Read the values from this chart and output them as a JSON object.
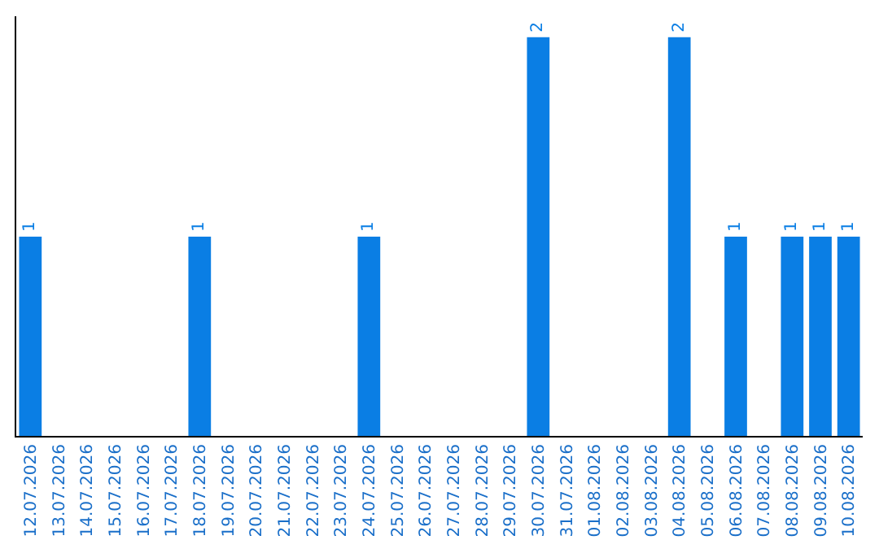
{
  "chart_data": {
    "type": "bar",
    "categories": [
      "12.07.2026",
      "13.07.2026",
      "14.07.2026",
      "15.07.2026",
      "16.07.2026",
      "17.07.2026",
      "18.07.2026",
      "19.07.2026",
      "20.07.2026",
      "21.07.2026",
      "22.07.2026",
      "23.07.2026",
      "24.07.2026",
      "25.07.2026",
      "26.07.2026",
      "27.07.2026",
      "28.07.2026",
      "29.07.2026",
      "30.07.2026",
      "31.07.2026",
      "01.08.2026",
      "02.08.2026",
      "03.08.2026",
      "04.08.2026",
      "05.08.2026",
      "06.08.2026",
      "07.08.2026",
      "08.08.2026",
      "09.08.2026",
      "10.08.2026"
    ],
    "values": [
      1,
      0,
      0,
      0,
      0,
      0,
      1,
      0,
      0,
      0,
      0,
      0,
      1,
      0,
      0,
      0,
      0,
      0,
      2,
      0,
      0,
      0,
      0,
      2,
      0,
      1,
      0,
      1,
      1,
      1
    ],
    "value_labels": [
      "1",
      null,
      null,
      null,
      null,
      null,
      "1",
      null,
      null,
      null,
      null,
      null,
      "1",
      null,
      null,
      null,
      null,
      null,
      "2",
      null,
      null,
      null,
      null,
      "2",
      null,
      "1",
      null,
      "1",
      "1",
      "1"
    ],
    "color": "#0a7ee4",
    "grid": false,
    "legend": false,
    "tick_labels": "x"
  }
}
